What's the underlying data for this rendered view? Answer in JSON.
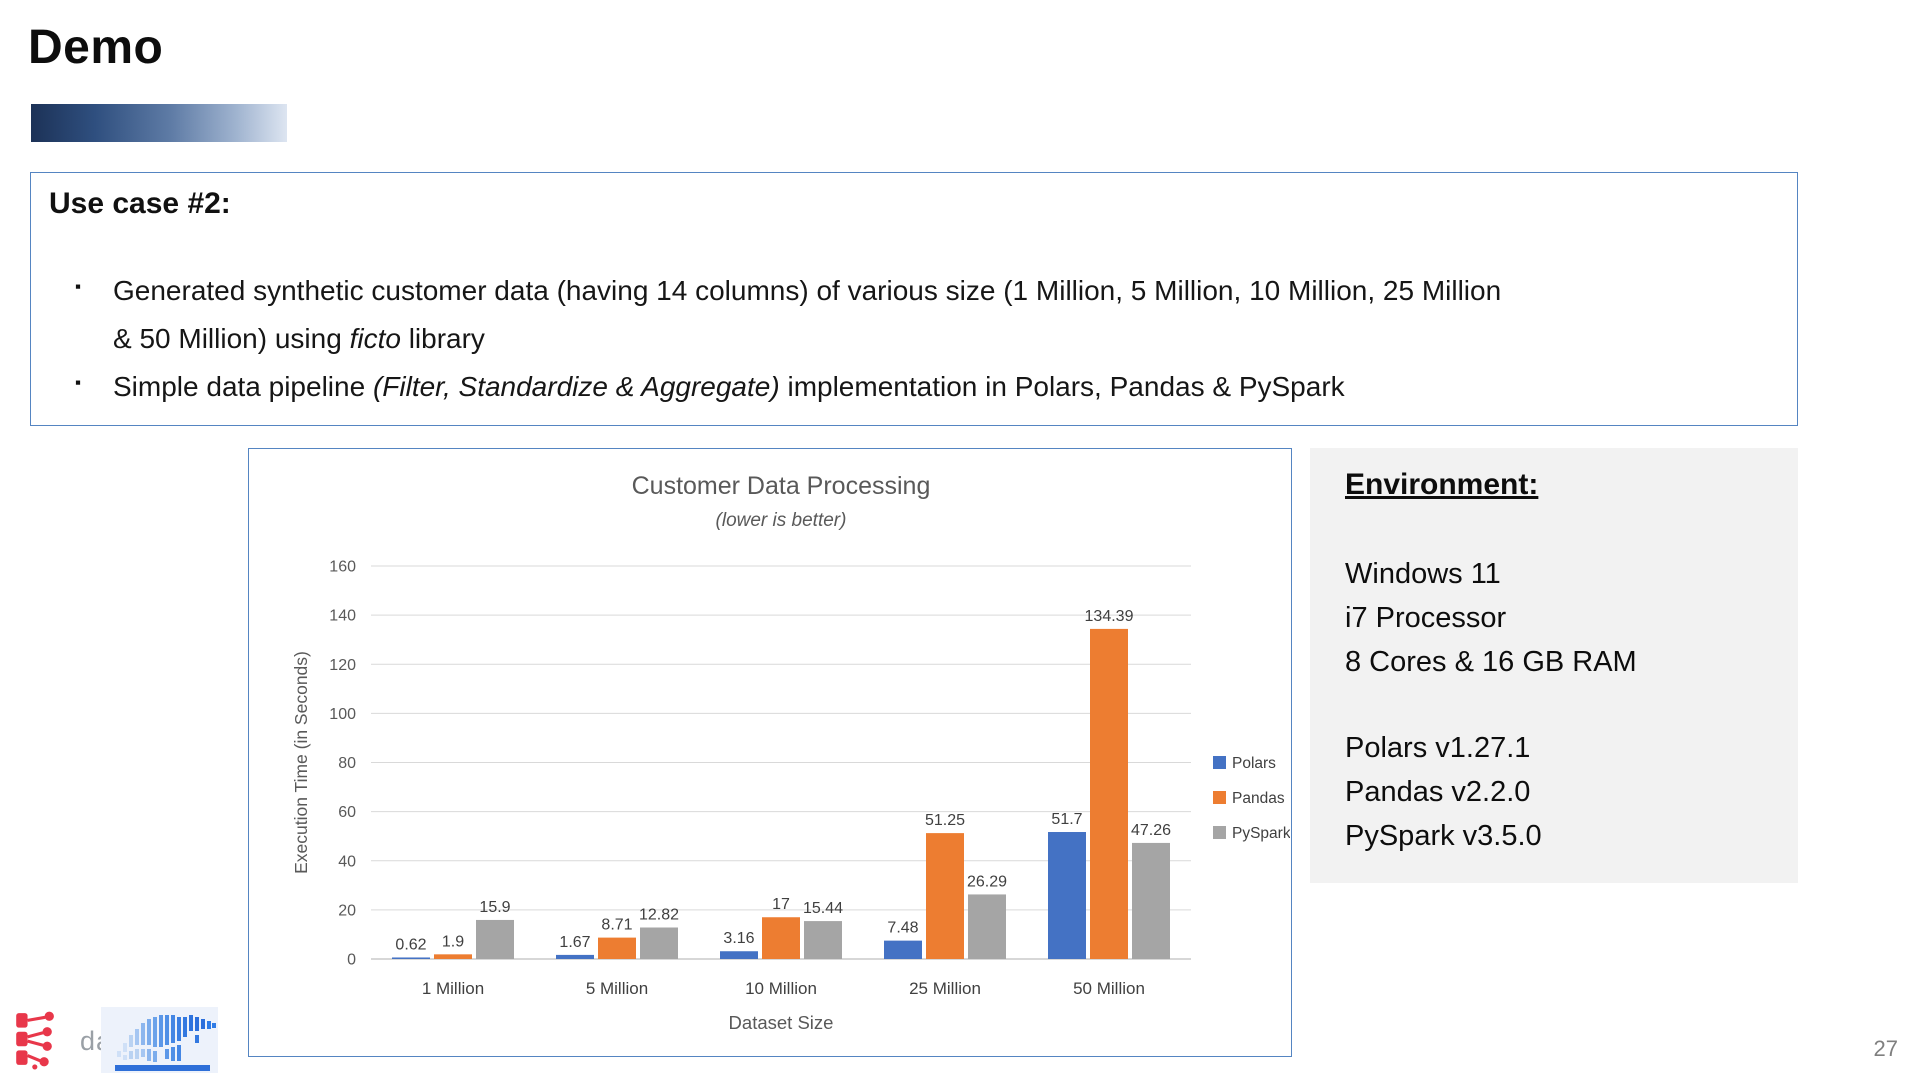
{
  "slide": {
    "title": "Demo",
    "page_number": "27"
  },
  "usecase": {
    "heading": "Use case #2:",
    "bullets": [
      [
        {
          "text": "Generated synthetic customer data (having 14 columns) of various size (1 Million, 5 Million, 10 Million, 25 Million & 50 Million) using "
        },
        {
          "text": "ficto",
          "italic": true
        },
        {
          "text": " library"
        }
      ],
      [
        {
          "text": "Simple data pipeline "
        },
        {
          "text": "(Filter, Standardize & Aggregate)",
          "italic": true
        },
        {
          "text": " implementation in Polars, Pandas & PySpark"
        }
      ]
    ]
  },
  "chart_data": {
    "type": "bar",
    "title": "Customer Data Processing",
    "subtitle": "(lower is better)",
    "categories": [
      "1 Million",
      "5 Million",
      "10 Million",
      "25 Million",
      "50 Million"
    ],
    "series": [
      {
        "name": "Polars",
        "color": "#4472C4",
        "values": [
          0.62,
          1.67,
          3.16,
          7.48,
          51.7
        ],
        "labels": [
          "0.62",
          "1.67",
          "3.16",
          "7.48",
          "51.7"
        ]
      },
      {
        "name": "Pandas",
        "color": "#ED7D31",
        "values": [
          1.9,
          8.71,
          17,
          51.25,
          134.39
        ],
        "labels": [
          "1.9",
          "8.71",
          "17",
          "51.25",
          "134.39"
        ]
      },
      {
        "name": "PySpark",
        "color": "#A5A5A5",
        "values": [
          15.9,
          12.82,
          15.44,
          26.29,
          47.26
        ],
        "labels": [
          "15.9",
          "12.82",
          "15.44",
          "26.29",
          "47.26"
        ]
      }
    ],
    "xlabel": "Dataset Size",
    "ylabel": "Execution Time (in Seconds)",
    "ylim": [
      0,
      160
    ],
    "ytick_step": 20,
    "grid": true,
    "legend_position": "right"
  },
  "environment": {
    "heading": "Environment:",
    "lines_system": [
      "Windows 11",
      "i7 Processor",
      "8 Cores & 16 GB RAM"
    ],
    "lines_versions": [
      "Polars v1.27.1",
      "Pandas v2.2.0",
      "PySpark v3.5.0"
    ]
  },
  "footer": {
    "da_logo_text": "da"
  },
  "colors": {
    "box_border": "#5585c2",
    "env_background": "#f2f2f2",
    "chart_text": "#595959",
    "gridline": "#d9d9d9",
    "axis_line": "#bfbfbf",
    "title_bar_gradient_start": "#1c3257",
    "title_bar_gradient_end": "#dde5f1"
  }
}
